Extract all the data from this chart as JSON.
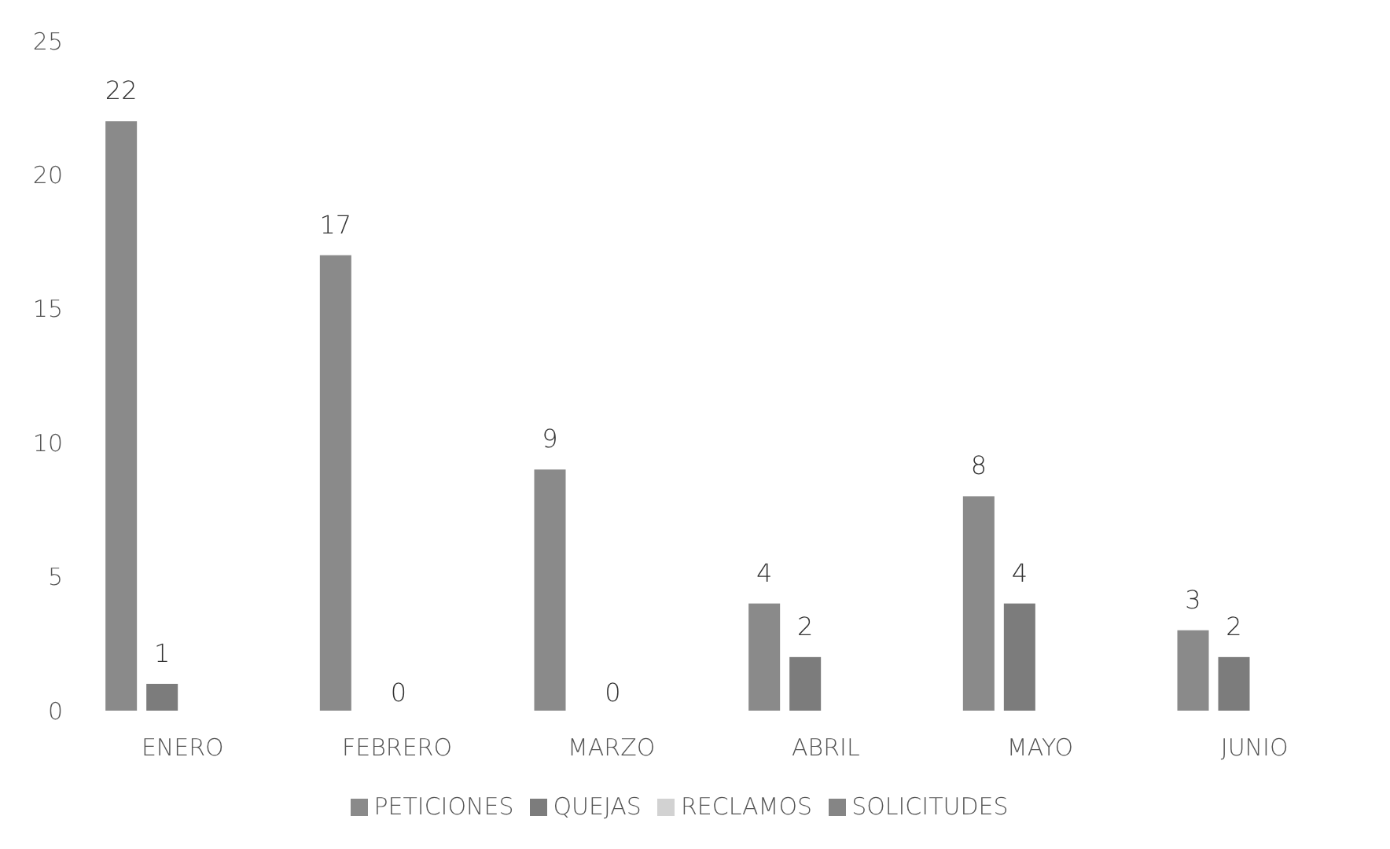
{
  "chart_data": {
    "type": "bar",
    "categories": [
      "ENERO",
      "FEBRERO",
      "MARZO",
      "ABRIL",
      "MAYO",
      "JUNIO"
    ],
    "series": [
      {
        "name": "PETICIONES",
        "color": "#8a8a8a",
        "values": [
          22,
          17,
          9,
          4,
          8,
          3
        ]
      },
      {
        "name": "QUEJAS",
        "color": "#7c7c7c",
        "values": [
          1,
          0,
          0,
          2,
          4,
          2
        ]
      },
      {
        "name": "RECLAMOS",
        "color": "#d2d2d2",
        "values": [
          null,
          null,
          null,
          null,
          null,
          null
        ]
      },
      {
        "name": "SOLICITUDES",
        "color": "#858585",
        "values": [
          null,
          null,
          null,
          null,
          null,
          null
        ]
      }
    ],
    "ylim": [
      0,
      25
    ],
    "yticks": [
      0,
      5,
      10,
      15,
      20,
      25
    ],
    "grid": false,
    "legend": "bottom",
    "data_labels": true
  }
}
